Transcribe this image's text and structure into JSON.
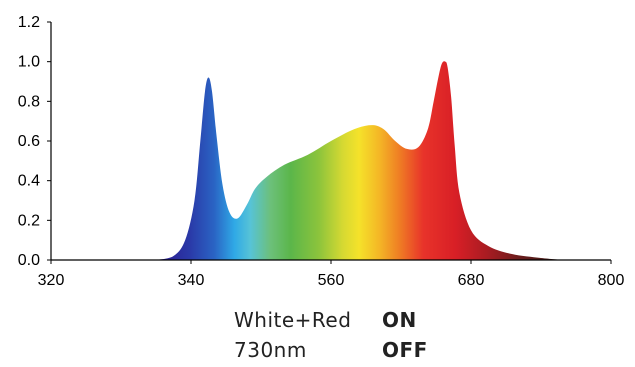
{
  "chart_data": {
    "type": "area",
    "title": "",
    "xlabel": "",
    "ylabel": "",
    "xlim": [
      320,
      800
    ],
    "ylim": [
      0,
      1.2
    ],
    "x_ticks": [
      320,
      340,
      560,
      680,
      800
    ],
    "y_ticks": [
      "0.0",
      "0.2",
      "0.4",
      "0.6",
      "0.8",
      "1.0",
      "1.2"
    ],
    "grid": false,
    "series": [
      {
        "x": [
          410,
          425,
          435,
          443,
          448,
          452,
          455,
          458,
          462,
          467,
          473,
          480,
          488,
          495,
          505,
          520,
          540,
          560,
          580,
          595,
          605,
          615,
          625,
          635,
          643,
          648,
          652,
          655,
          658,
          660,
          663,
          666,
          670,
          680,
          695,
          715,
          740,
          760
        ],
        "y": [
          0.0,
          0.02,
          0.1,
          0.3,
          0.6,
          0.85,
          0.92,
          0.85,
          0.62,
          0.38,
          0.24,
          0.21,
          0.28,
          0.36,
          0.42,
          0.48,
          0.53,
          0.6,
          0.66,
          0.68,
          0.66,
          0.6,
          0.56,
          0.57,
          0.66,
          0.8,
          0.92,
          0.99,
          1.0,
          0.97,
          0.82,
          0.58,
          0.34,
          0.15,
          0.07,
          0.03,
          0.01,
          0.0
        ]
      }
    ]
  },
  "legend": {
    "rows": [
      {
        "name": "White+Red",
        "state": "ON"
      },
      {
        "name": "730nm",
        "state": "OFF"
      }
    ]
  }
}
